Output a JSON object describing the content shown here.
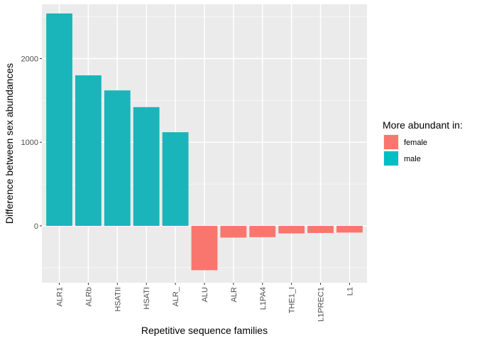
{
  "chart_data": {
    "type": "bar",
    "xlabel": "Repetitive sequence families",
    "ylabel": "Difference between sex abundances",
    "categories": [
      "ALR1",
      "ALRb",
      "HSATII",
      "HSATI",
      "ALR_",
      "ALU",
      "ALR",
      "L1PA4",
      "THE1_I",
      "L1PREC1",
      "L1"
    ],
    "values": [
      2540,
      1800,
      1620,
      1420,
      1120,
      -530,
      -140,
      -135,
      -90,
      -85,
      -80
    ],
    "groups": [
      "male",
      "male",
      "male",
      "male",
      "male",
      "female",
      "female",
      "female",
      "female",
      "female",
      "female"
    ],
    "ylim": [
      -680,
      2650
    ],
    "yticks": [
      0,
      1000,
      2000
    ],
    "grid": true,
    "legend": {
      "title": "More abundant in:",
      "position": "right",
      "items": [
        {
          "name": "female",
          "color": "#F8766D"
        },
        {
          "name": "male",
          "color": "#00BFC4"
        }
      ]
    },
    "colors": {
      "female": "#F8766D",
      "male": "#1AB5BA"
    }
  }
}
